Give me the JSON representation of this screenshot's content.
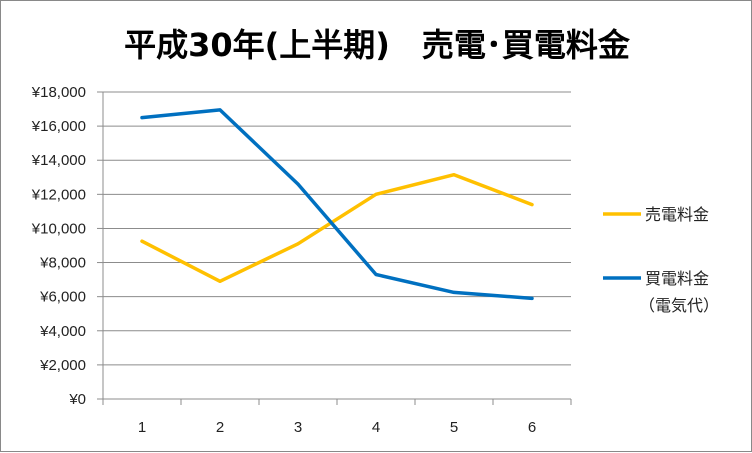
{
  "chart_data": {
    "type": "line",
    "title": "平成30年(上半期)　売電･買電料金",
    "x": [
      "1",
      "2",
      "3",
      "4",
      "5",
      "6"
    ],
    "ylim": [
      0,
      18000
    ],
    "y_ticks": [
      "¥0",
      "¥2,000",
      "¥4,000",
      "¥6,000",
      "¥8,000",
      "¥10,000",
      "¥12,000",
      "¥14,000",
      "¥16,000",
      "¥18,000"
    ],
    "grid": true,
    "legend_position": "right",
    "series": [
      {
        "name": "売電料金",
        "name_lines": [
          "売電料金"
        ],
        "color": "#FFC000",
        "values": [
          9250,
          6900,
          9100,
          12000,
          13150,
          11400
        ]
      },
      {
        "name": "買電料金（電気代）",
        "name_lines": [
          "買電料金",
          "（電気代）"
        ],
        "color": "#0070C0",
        "values": [
          16500,
          16950,
          12600,
          7300,
          6250,
          5900
        ]
      }
    ]
  }
}
